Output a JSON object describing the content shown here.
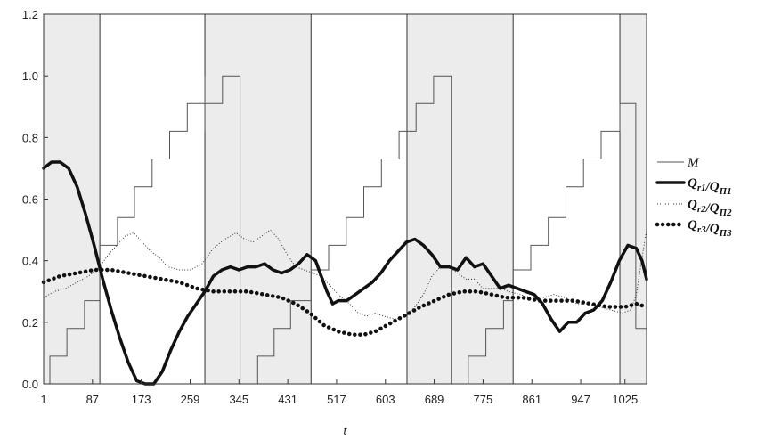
{
  "chart_data": {
    "type": "line",
    "xlabel": "t",
    "ylabel": "",
    "xlim": [
      1,
      1063
    ],
    "ylim": [
      0,
      1.2
    ],
    "x_ticks": [
      "1",
      "87",
      "173",
      "259",
      "345",
      "431",
      "517",
      "603",
      "689",
      "775",
      "861",
      "947",
      "1025"
    ],
    "y_ticks": [
      "0.0",
      "0.2",
      "0.4",
      "0.6",
      "0.8",
      "1.0",
      "1.2"
    ],
    "shaded_regions": [
      [
        1,
        100
      ],
      [
        285,
        472
      ],
      [
        641,
        828
      ],
      [
        1016,
        1063
      ]
    ],
    "vertical_lines": [
      100,
      285,
      472,
      641,
      828,
      1016
    ],
    "legend_position": "right",
    "series": [
      {
        "name": "M",
        "style": "step",
        "points": [
          [
            1,
            0
          ],
          [
            12,
            0
          ],
          [
            12,
            0.09
          ],
          [
            42,
            0.09
          ],
          [
            42,
            0.18
          ],
          [
            73,
            0.18
          ],
          [
            73,
            0.27
          ],
          [
            100,
            0.27
          ],
          [
            100,
            0.37
          ],
          [
            100,
            0.45
          ],
          [
            131,
            0.45
          ],
          [
            131,
            0.54
          ],
          [
            161,
            0.54
          ],
          [
            161,
            0.64
          ],
          [
            192,
            0.64
          ],
          [
            192,
            0.73
          ],
          [
            223,
            0.73
          ],
          [
            223,
            0.82
          ],
          [
            254,
            0.82
          ],
          [
            254,
            0.91
          ],
          [
            285,
            0.91
          ],
          [
            285,
            1.0
          ],
          [
            285,
            0.82
          ],
          [
            285,
            0.91
          ],
          [
            316,
            0.91
          ],
          [
            316,
            1.0
          ],
          [
            347,
            1.0
          ],
          [
            347,
            0
          ],
          [
            378,
            0
          ],
          [
            378,
            0.09
          ],
          [
            407,
            0.09
          ],
          [
            407,
            0.18
          ],
          [
            436,
            0.18
          ],
          [
            436,
            0.27
          ],
          [
            472,
            0.27
          ],
          [
            472,
            0.37
          ],
          [
            503,
            0.37
          ],
          [
            503,
            0.45
          ],
          [
            534,
            0.45
          ],
          [
            534,
            0.54
          ],
          [
            565,
            0.54
          ],
          [
            565,
            0.64
          ],
          [
            596,
            0.64
          ],
          [
            596,
            0.73
          ],
          [
            627,
            0.73
          ],
          [
            627,
            0.82
          ],
          [
            657,
            0.82
          ],
          [
            657,
            0.91
          ],
          [
            688,
            0.91
          ],
          [
            688,
            1.0
          ],
          [
            719,
            1.0
          ],
          [
            719,
            0
          ],
          [
            749,
            0
          ],
          [
            749,
            0.09
          ],
          [
            780,
            0.09
          ],
          [
            780,
            0.18
          ],
          [
            811,
            0.18
          ],
          [
            811,
            0.27
          ],
          [
            828,
            0.27
          ],
          [
            828,
            0.37
          ],
          [
            859,
            0.37
          ],
          [
            859,
            0.45
          ],
          [
            890,
            0.45
          ],
          [
            890,
            0.54
          ],
          [
            921,
            0.54
          ],
          [
            921,
            0.64
          ],
          [
            952,
            0.64
          ],
          [
            952,
            0.73
          ],
          [
            983,
            0.73
          ],
          [
            983,
            0.82
          ],
          [
            1016,
            0.82
          ],
          [
            1016,
            0.91
          ],
          [
            1044,
            0.91
          ],
          [
            1044,
            0.18
          ],
          [
            1063,
            0.18
          ]
        ]
      },
      {
        "name": "Q_r1/Q_Π1",
        "style": "thick",
        "points": [
          [
            1,
            0.7
          ],
          [
            15,
            0.72
          ],
          [
            30,
            0.72
          ],
          [
            45,
            0.7
          ],
          [
            60,
            0.64
          ],
          [
            75,
            0.55
          ],
          [
            90,
            0.45
          ],
          [
            105,
            0.34
          ],
          [
            120,
            0.24
          ],
          [
            135,
            0.15
          ],
          [
            150,
            0.07
          ],
          [
            165,
            0.01
          ],
          [
            180,
            -0.02
          ],
          [
            195,
            0.0
          ],
          [
            210,
            0.04
          ],
          [
            225,
            0.11
          ],
          [
            240,
            0.17
          ],
          [
            255,
            0.22
          ],
          [
            270,
            0.26
          ],
          [
            285,
            0.3
          ],
          [
            300,
            0.35
          ],
          [
            315,
            0.37
          ],
          [
            330,
            0.38
          ],
          [
            345,
            0.37
          ],
          [
            360,
            0.38
          ],
          [
            375,
            0.38
          ],
          [
            390,
            0.39
          ],
          [
            405,
            0.37
          ],
          [
            420,
            0.36
          ],
          [
            435,
            0.37
          ],
          [
            450,
            0.39
          ],
          [
            465,
            0.42
          ],
          [
            480,
            0.4
          ],
          [
            490,
            0.35
          ],
          [
            500,
            0.3
          ],
          [
            510,
            0.26
          ],
          [
            520,
            0.27
          ],
          [
            535,
            0.27
          ],
          [
            550,
            0.29
          ],
          [
            565,
            0.31
          ],
          [
            580,
            0.33
          ],
          [
            595,
            0.36
          ],
          [
            610,
            0.4
          ],
          [
            625,
            0.43
          ],
          [
            640,
            0.46
          ],
          [
            655,
            0.47
          ],
          [
            670,
            0.45
          ],
          [
            685,
            0.42
          ],
          [
            700,
            0.38
          ],
          [
            715,
            0.38
          ],
          [
            730,
            0.37
          ],
          [
            745,
            0.41
          ],
          [
            760,
            0.38
          ],
          [
            775,
            0.39
          ],
          [
            790,
            0.35
          ],
          [
            805,
            0.31
          ],
          [
            820,
            0.32
          ],
          [
            835,
            0.31
          ],
          [
            850,
            0.3
          ],
          [
            865,
            0.29
          ],
          [
            880,
            0.26
          ],
          [
            895,
            0.21
          ],
          [
            910,
            0.17
          ],
          [
            925,
            0.2
          ],
          [
            940,
            0.2
          ],
          [
            955,
            0.23
          ],
          [
            970,
            0.24
          ],
          [
            985,
            0.27
          ],
          [
            1000,
            0.33
          ],
          [
            1015,
            0.4
          ],
          [
            1030,
            0.45
          ],
          [
            1045,
            0.44
          ],
          [
            1055,
            0.4
          ],
          [
            1063,
            0.34
          ]
        ]
      },
      {
        "name": "Q_r2/Q_Π2",
        "style": "dotted",
        "points": [
          [
            1,
            0.28
          ],
          [
            20,
            0.3
          ],
          [
            40,
            0.31
          ],
          [
            60,
            0.33
          ],
          [
            80,
            0.35
          ],
          [
            100,
            0.38
          ],
          [
            115,
            0.42
          ],
          [
            130,
            0.45
          ],
          [
            145,
            0.48
          ],
          [
            160,
            0.49
          ],
          [
            175,
            0.46
          ],
          [
            190,
            0.43
          ],
          [
            205,
            0.41
          ],
          [
            220,
            0.38
          ],
          [
            240,
            0.37
          ],
          [
            260,
            0.37
          ],
          [
            280,
            0.39
          ],
          [
            300,
            0.44
          ],
          [
            320,
            0.47
          ],
          [
            340,
            0.49
          ],
          [
            355,
            0.47
          ],
          [
            370,
            0.46
          ],
          [
            385,
            0.48
          ],
          [
            400,
            0.5
          ],
          [
            415,
            0.47
          ],
          [
            430,
            0.42
          ],
          [
            445,
            0.38
          ],
          [
            460,
            0.37
          ],
          [
            475,
            0.36
          ],
          [
            490,
            0.35
          ],
          [
            505,
            0.32
          ],
          [
            520,
            0.29
          ],
          [
            540,
            0.26
          ],
          [
            555,
            0.23
          ],
          [
            570,
            0.22
          ],
          [
            585,
            0.23
          ],
          [
            600,
            0.22
          ],
          [
            620,
            0.21
          ],
          [
            640,
            0.22
          ],
          [
            655,
            0.25
          ],
          [
            670,
            0.29
          ],
          [
            685,
            0.35
          ],
          [
            700,
            0.38
          ],
          [
            715,
            0.38
          ],
          [
            730,
            0.36
          ],
          [
            745,
            0.34
          ],
          [
            760,
            0.34
          ],
          [
            775,
            0.31
          ],
          [
            790,
            0.31
          ],
          [
            805,
            0.31
          ],
          [
            820,
            0.3
          ],
          [
            840,
            0.29
          ],
          [
            860,
            0.28
          ],
          [
            880,
            0.28
          ],
          [
            900,
            0.29
          ],
          [
            920,
            0.28
          ],
          [
            940,
            0.26
          ],
          [
            960,
            0.26
          ],
          [
            980,
            0.25
          ],
          [
            1000,
            0.24
          ],
          [
            1020,
            0.23
          ],
          [
            1035,
            0.24
          ],
          [
            1045,
            0.29
          ],
          [
            1055,
            0.41
          ],
          [
            1063,
            0.5
          ]
        ]
      },
      {
        "name": "Q_r3/Q_Π3",
        "style": "dots",
        "points": [
          [
            1,
            0.33
          ],
          [
            30,
            0.35
          ],
          [
            60,
            0.36
          ],
          [
            90,
            0.37
          ],
          [
            120,
            0.37
          ],
          [
            150,
            0.36
          ],
          [
            180,
            0.35
          ],
          [
            210,
            0.34
          ],
          [
            240,
            0.33
          ],
          [
            270,
            0.31
          ],
          [
            300,
            0.3
          ],
          [
            330,
            0.3
          ],
          [
            360,
            0.3
          ],
          [
            390,
            0.29
          ],
          [
            420,
            0.28
          ],
          [
            445,
            0.26
          ],
          [
            470,
            0.23
          ],
          [
            495,
            0.19
          ],
          [
            520,
            0.17
          ],
          [
            545,
            0.16
          ],
          [
            565,
            0.16
          ],
          [
            585,
            0.17
          ],
          [
            605,
            0.19
          ],
          [
            625,
            0.21
          ],
          [
            645,
            0.23
          ],
          [
            665,
            0.25
          ],
          [
            690,
            0.27
          ],
          [
            715,
            0.29
          ],
          [
            740,
            0.3
          ],
          [
            765,
            0.3
          ],
          [
            790,
            0.29
          ],
          [
            815,
            0.28
          ],
          [
            845,
            0.28
          ],
          [
            875,
            0.27
          ],
          [
            905,
            0.27
          ],
          [
            935,
            0.27
          ],
          [
            965,
            0.26
          ],
          [
            995,
            0.25
          ],
          [
            1025,
            0.25
          ],
          [
            1045,
            0.26
          ],
          [
            1063,
            0.25
          ]
        ]
      }
    ]
  }
}
